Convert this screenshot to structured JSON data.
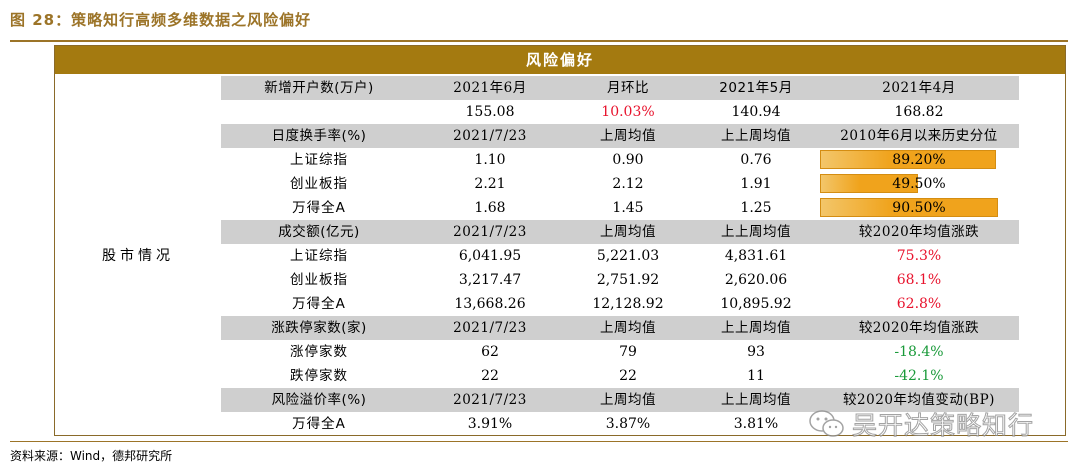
{
  "figure": {
    "title": "图 28：策略知行高频多维数据之风险偏好",
    "band_title": "风险偏好",
    "side_label": "股市情况",
    "source": "资料来源：Wind，德邦研究所",
    "watermark": "吴开达策略知行",
    "colors": {
      "accent": "#a47a10",
      "header_row": "#cfcfcf",
      "positive": "#e8132d",
      "negative": "#1a9a3a",
      "bar": "#f0a31c"
    }
  },
  "rows": [
    {
      "type": "hdr",
      "cells": [
        "新增开户数(万户)",
        "2021年6月",
        "月环比",
        "2021年5月",
        "2021年4月"
      ]
    },
    {
      "type": "data",
      "cells": [
        "",
        "155.08",
        "10.03%",
        "140.94",
        "168.82"
      ],
      "colors": [
        "",
        "",
        "red",
        "",
        ""
      ]
    },
    {
      "type": "hdr",
      "cells": [
        "日度换手率(%)",
        "2021/7/23",
        "上周均值",
        "上上周均值",
        "2010年6月以来历史分位"
      ]
    },
    {
      "type": "data",
      "cells": [
        "上证综指",
        "1.10",
        "0.90",
        "0.76",
        "89.20%"
      ],
      "bar": 0.892
    },
    {
      "type": "data",
      "cells": [
        "创业板指",
        "2.21",
        "2.12",
        "1.91",
        "49.50%"
      ],
      "bar": 0.495
    },
    {
      "type": "data",
      "cells": [
        "万得全A",
        "1.68",
        "1.45",
        "1.25",
        "90.50%"
      ],
      "bar": 0.905
    },
    {
      "type": "hdr",
      "cells": [
        "成交额(亿元)",
        "2021/7/23",
        "上周均值",
        "上上周均值",
        "较2020年均值涨跌"
      ]
    },
    {
      "type": "data",
      "cells": [
        "上证综指",
        "6,041.95",
        "5,221.03",
        "4,831.61",
        "75.3%"
      ],
      "colors": [
        "",
        "",
        "",
        "",
        "red"
      ]
    },
    {
      "type": "data",
      "cells": [
        "创业板指",
        "3,217.47",
        "2,751.92",
        "2,620.06",
        "68.1%"
      ],
      "colors": [
        "",
        "",
        "",
        "",
        "red"
      ]
    },
    {
      "type": "data",
      "cells": [
        "万得全A",
        "13,668.26",
        "12,128.92",
        "10,895.92",
        "62.8%"
      ],
      "colors": [
        "",
        "",
        "",
        "",
        "red"
      ]
    },
    {
      "type": "hdr",
      "cells": [
        "涨跌停家数(家)",
        "2021/7/23",
        "上周均值",
        "上上周均值",
        "较2020年均值涨跌"
      ]
    },
    {
      "type": "data",
      "cells": [
        "涨停家数",
        "62",
        "79",
        "93",
        "-18.4%"
      ],
      "colors": [
        "",
        "",
        "",
        "",
        "green"
      ]
    },
    {
      "type": "data",
      "cells": [
        "跌停家数",
        "22",
        "22",
        "11",
        "-42.1%"
      ],
      "colors": [
        "",
        "",
        "",
        "",
        "green"
      ]
    },
    {
      "type": "hdr",
      "cells": [
        "风险溢价率(%)",
        "2021/7/23",
        "上周均值",
        "上上周均值",
        "较2020年均值变动(BP)"
      ]
    },
    {
      "type": "data",
      "cells": [
        "万得全A",
        "3.91%",
        "3.87%",
        "3.81%",
        ""
      ]
    }
  ]
}
